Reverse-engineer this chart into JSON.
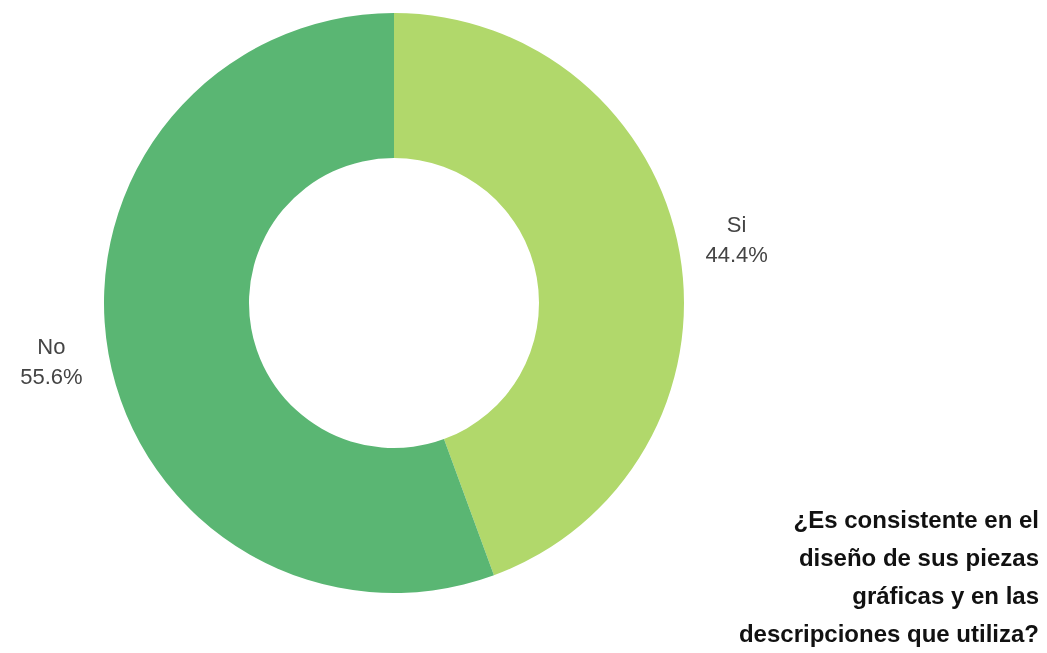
{
  "chart_data": {
    "type": "donut",
    "title": "¿Es consistente en el diseño de sus piezas gráficas y en las descripciones que utiliza?",
    "categories": [
      "Si",
      "No"
    ],
    "values": [
      44.4,
      55.6
    ],
    "colors": [
      "#b1d86b",
      "#5ab673"
    ],
    "data_labels": true,
    "value_labels": [
      "44.4%",
      "55.6%"
    ]
  }
}
